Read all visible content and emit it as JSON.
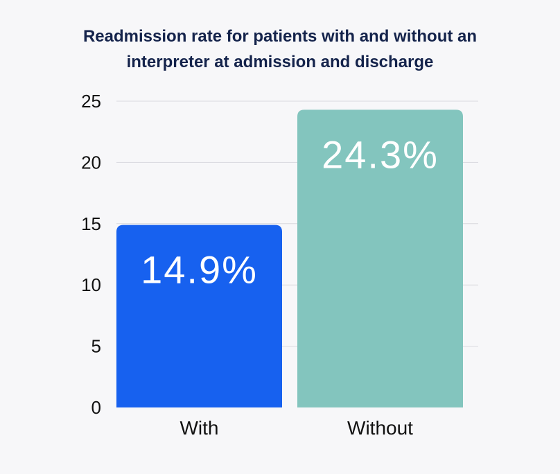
{
  "chart_data": {
    "type": "bar",
    "title_lines": [
      "Readmission rate for patients with and without an",
      "interpreter at admission and discharge"
    ],
    "categories": [
      "With",
      "Without"
    ],
    "values": [
      14.9,
      24.3
    ],
    "data_labels": [
      "14.9%",
      "24.3%"
    ],
    "colors": [
      "#1761ef",
      "#83c5be"
    ],
    "xlabel": "",
    "ylabel": "",
    "ylim": [
      0,
      25
    ],
    "yticks": [
      0,
      5,
      10,
      15,
      20,
      25
    ],
    "grid": true
  }
}
